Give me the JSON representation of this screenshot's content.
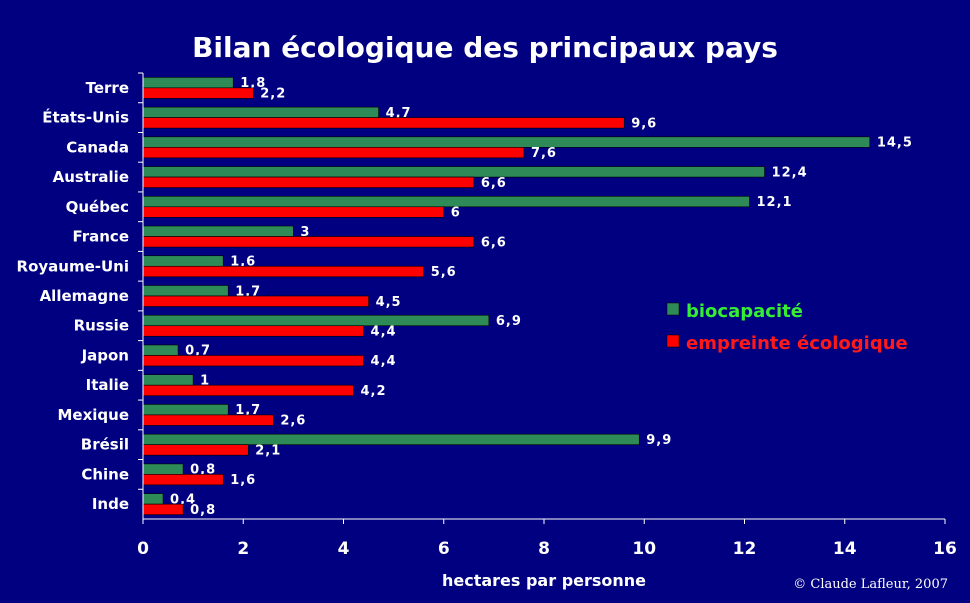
{
  "chart_data": {
    "type": "bar",
    "orientation": "horizontal",
    "title": "Bilan écologique des principaux pays",
    "xlabel": "hectares par personne",
    "ylabel": "",
    "xlim": [
      0,
      16
    ],
    "x_ticks": [
      "0",
      "2",
      "4",
      "6",
      "8",
      "10",
      "12",
      "14",
      "16"
    ],
    "x_tick_values": [
      0,
      2,
      4,
      6,
      8,
      10,
      12,
      14,
      16
    ],
    "grid": false,
    "legend_position": "right",
    "categories": [
      "Terre",
      "États-Unis",
      "Canada",
      "Australie",
      "Québec",
      "France",
      "Royaume-Uni",
      "Allemagne",
      "Russie",
      "Japon",
      "Italie",
      "Mexique",
      "Brésil",
      "Chine",
      "Inde"
    ],
    "series": [
      {
        "name": "biocapacité",
        "color": "#2e8b57",
        "legend_text_color": "#33ee33",
        "values": [
          1.8,
          4.7,
          14.5,
          12.4,
          12.1,
          3,
          1.6,
          1.7,
          6.9,
          0.7,
          1,
          1.7,
          9.9,
          0.8,
          0.4
        ],
        "labels": [
          "1,8",
          "4,7",
          "14,5",
          "12,4",
          "12,1",
          "3",
          "1,6",
          "1,7",
          "6,9",
          "0,7",
          "1",
          "1,7",
          "9,9",
          "0,8",
          "0,4"
        ]
      },
      {
        "name": "empreinte écologique",
        "color": "#ff0000",
        "legend_text_color": "#ff1a1a",
        "values": [
          2.2,
          9.6,
          7.6,
          6.6,
          6,
          6.6,
          5.6,
          4.5,
          4.4,
          4.4,
          4.2,
          2.6,
          2.1,
          1.6,
          0.8
        ],
        "labels": [
          "2,2",
          "9,6",
          "7,6",
          "6,6",
          "6",
          "6,6",
          "5,6",
          "4,5",
          "4,4",
          "4,4",
          "4,2",
          "2,6",
          "2,1",
          "1,6",
          "0,8"
        ]
      }
    ]
  },
  "copyright": "© Claude Lafleur, 2007",
  "colors": {
    "background": "#000080",
    "axis": "#ffffff",
    "text": "#ffffff"
  }
}
